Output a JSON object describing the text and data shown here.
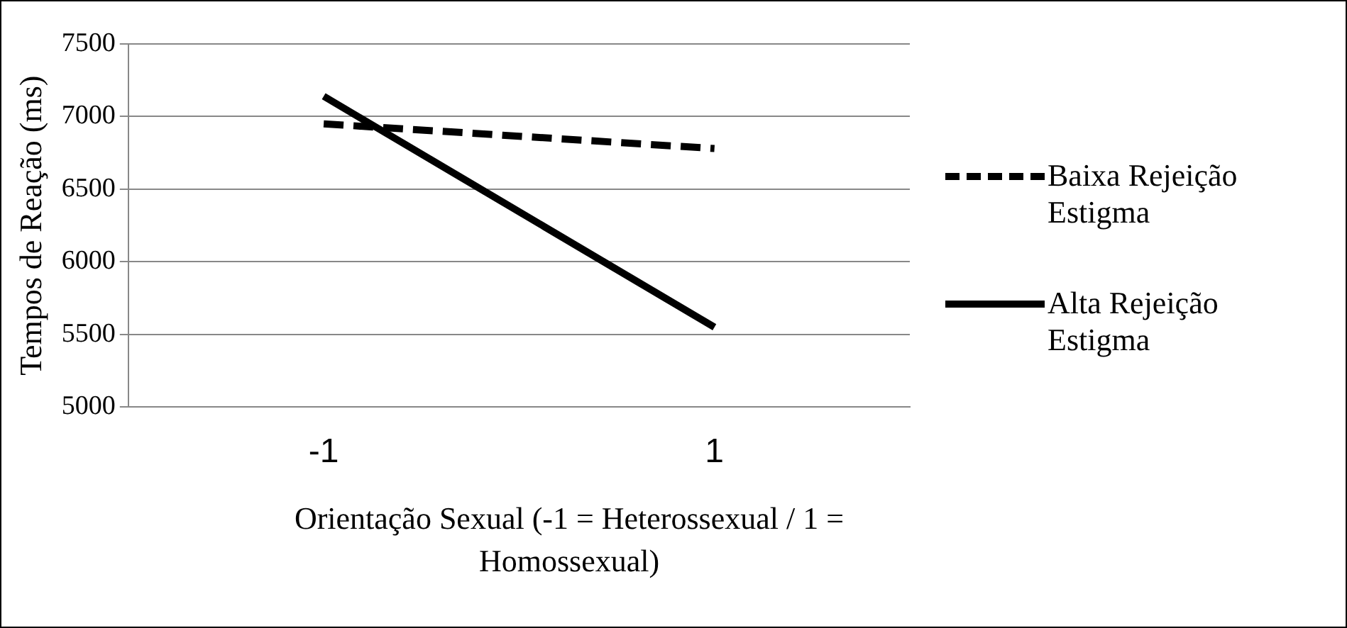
{
  "chart_data": {
    "type": "line",
    "xlabel": "Orientação Sexual (-1 = Heterossexual / 1 = Homossexual)",
    "ylabel": "Tempos de Reação (ms)",
    "categories": [
      "-1",
      "1"
    ],
    "series": [
      {
        "name": "Baixa Rejeição Estigma",
        "color": "#000000",
        "values": [
          6950,
          6780
        ],
        "line_style": "dashed"
      },
      {
        "name": "Alta Rejeição Estigma",
        "color": "#000000",
        "values": [
          7140,
          5550
        ],
        "line_style": "solid"
      }
    ],
    "ylim": [
      5000,
      7500
    ],
    "yticks": [
      5000,
      5500,
      6000,
      6500,
      7000,
      7500
    ],
    "grid": "y",
    "legend": "right",
    "marker": "none"
  }
}
